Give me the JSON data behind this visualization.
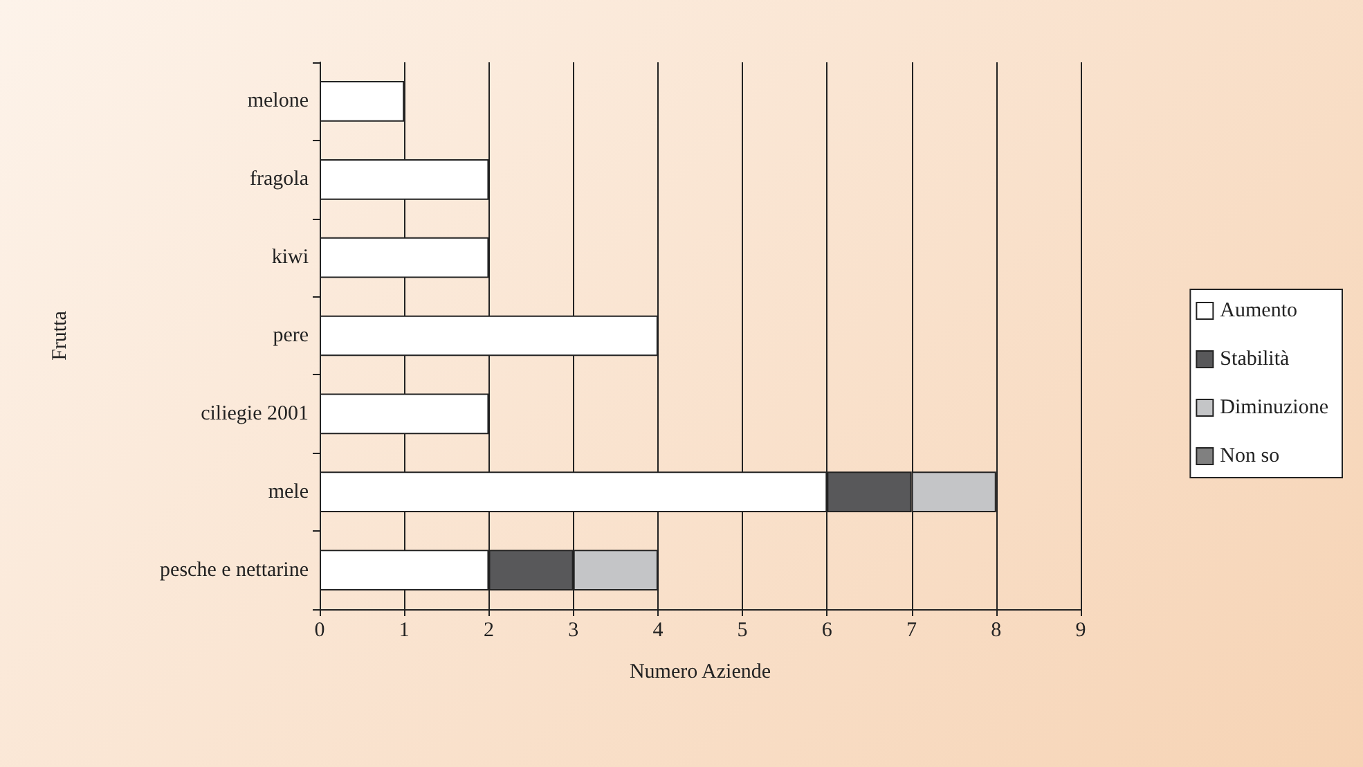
{
  "chart_data": {
    "type": "bar",
    "orientation": "horizontal",
    "stacked": true,
    "xlabel": "Numero Aziende",
    "ylabel": "Frutta",
    "categories": [
      "melone",
      "fragola",
      "kiwi",
      "pere",
      "ciliegie 2001",
      "mele",
      "pesche e nettarine"
    ],
    "series": [
      {
        "name": "Aumento",
        "color": "#ffffff",
        "values": [
          1,
          2,
          2,
          4,
          2,
          6,
          2
        ]
      },
      {
        "name": "Stabilità",
        "color": "#58585a",
        "values": [
          null,
          null,
          null,
          null,
          null,
          1,
          1
        ]
      },
      {
        "name": "Diminuzione",
        "color": "#c4c5c7",
        "values": [
          null,
          null,
          null,
          null,
          null,
          1,
          1
        ]
      },
      {
        "name": "Non so",
        "color": "#808080",
        "values": [
          null,
          null,
          null,
          null,
          null,
          null,
          null
        ]
      }
    ],
    "xlim": [
      0,
      9
    ],
    "xticks": [
      0,
      1,
      2,
      3,
      4,
      5,
      6,
      7,
      8,
      9
    ],
    "grid": "x",
    "legend": "right"
  }
}
